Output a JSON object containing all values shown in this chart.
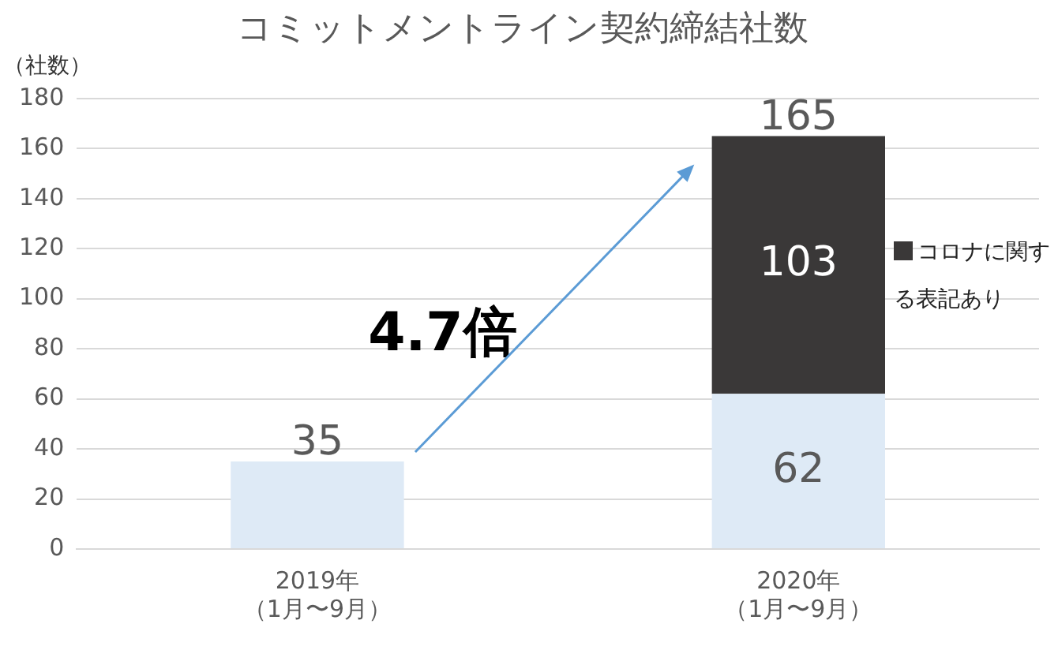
{
  "chart_data": {
    "type": "bar",
    "title": "コミットメントライン契約締結社数",
    "ylabel": "（社数）",
    "categories": [
      "2019年（1月〜9月）",
      "2020年（1月〜9月）"
    ],
    "stacked": true,
    "series": [
      {
        "color": "#deeaf6",
        "values": [
          35,
          62
        ],
        "value_labels": [
          null,
          "62"
        ]
      },
      {
        "name": "コロナに関する表記あり",
        "color": "#3a3838",
        "values": [
          null,
          103
        ],
        "value_labels": [
          null,
          "103"
        ]
      }
    ],
    "totals": [
      "35",
      "165"
    ],
    "annotations": [
      "4.7倍"
    ],
    "ylim": [
      0,
      180
    ],
    "yticks": [
      0,
      20,
      40,
      60,
      80,
      100,
      120,
      140,
      160,
      180
    ],
    "grid": "y",
    "legend": "right"
  }
}
